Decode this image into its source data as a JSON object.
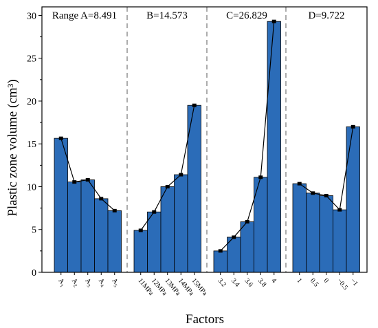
{
  "chart_data": {
    "type": "bar",
    "title": "",
    "xlabel": "Factors",
    "ylabel": "Plastic zone volume (cm³)",
    "ylim": [
      0,
      31
    ],
    "yticks": [
      0,
      5,
      10,
      15,
      20,
      25,
      30
    ],
    "grid": false,
    "line_overlay": true,
    "bar_color": "#2b6cb8",
    "separator_color": "#808080",
    "groups": [
      {
        "range_label": "Range A=8.491",
        "categories": [
          "A1",
          "A2",
          "A3",
          "A4",
          "A5"
        ],
        "values": [
          15.65,
          10.55,
          10.8,
          8.6,
          7.2
        ]
      },
      {
        "range_label": "B=14.573",
        "categories": [
          "11MPa",
          "12MPa",
          "13MPa",
          "14MPa",
          "15MPa"
        ],
        "values": [
          4.9,
          7.05,
          10.0,
          11.4,
          19.5
        ]
      },
      {
        "range_label": "C=26.829",
        "categories": [
          "3.2",
          "3.4",
          "3.6",
          "3.8",
          "4"
        ],
        "values": [
          2.5,
          4.1,
          5.9,
          11.1,
          29.3
        ]
      },
      {
        "range_label": "D=9.722",
        "categories": [
          "1",
          "0.5",
          "0",
          "−0.5",
          "−1"
        ],
        "values": [
          10.35,
          9.25,
          8.95,
          7.3,
          17.0
        ]
      }
    ]
  }
}
